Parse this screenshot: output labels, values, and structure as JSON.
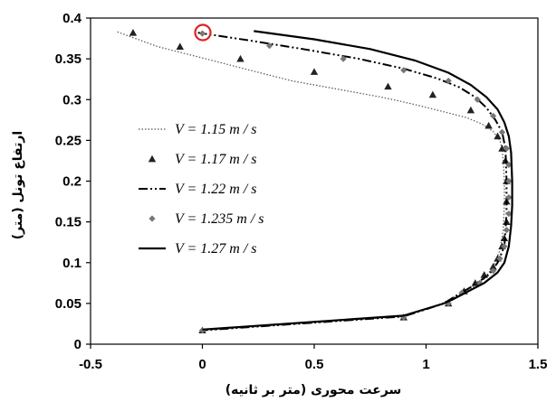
{
  "chart_data": {
    "type": "line",
    "xlabel": "سرعت محوری (متر بر ثانیه)",
    "ylabel": "ارتفاع تونل (متر)",
    "xlim": [
      -0.5,
      1.5
    ],
    "ylim": [
      0,
      0.4
    ],
    "xticks": [
      "-0.5",
      "0",
      "0.5",
      "1",
      "1.5"
    ],
    "yticks": [
      "0",
      "0.05",
      "0.1",
      "0.15",
      "0.2",
      "0.25",
      "0.3",
      "0.35",
      "0.4"
    ],
    "x_tick_values": [
      -0.5,
      0,
      0.5,
      1,
      1.5
    ],
    "y_tick_values": [
      0,
      0.05,
      0.1,
      0.15,
      0.2,
      0.25,
      0.3,
      0.35,
      0.4
    ],
    "grid": false,
    "legend_position": "left",
    "annotation": "red circle marking the point near (0, 0.38)",
    "series": [
      {
        "name": "V = 1.15 m / s",
        "style": "dotted",
        "color": "#555555",
        "points": [
          [
            -0.38,
            0.383
          ],
          [
            -0.2,
            0.365
          ],
          [
            0.0,
            0.351
          ],
          [
            0.2,
            0.337
          ],
          [
            0.4,
            0.323
          ],
          [
            0.6,
            0.313
          ],
          [
            0.8,
            0.303
          ],
          [
            0.95,
            0.294
          ],
          [
            1.08,
            0.285
          ],
          [
            1.18,
            0.278
          ],
          [
            1.25,
            0.27
          ],
          [
            1.3,
            0.261
          ],
          [
            1.33,
            0.25
          ],
          [
            1.34,
            0.24
          ],
          [
            1.345,
            0.225
          ],
          [
            1.35,
            0.2
          ],
          [
            1.35,
            0.17
          ],
          [
            1.345,
            0.14
          ],
          [
            1.33,
            0.115
          ],
          [
            1.3,
            0.095
          ],
          [
            1.26,
            0.08
          ],
          [
            1.2,
            0.068
          ],
          [
            1.12,
            0.057
          ],
          [
            1.07,
            0.05
          ],
          [
            0.9,
            0.034
          ],
          [
            0.0,
            0.017
          ]
        ]
      },
      {
        "name": "V = 1.17 m / s",
        "style": "markers-triangle",
        "color": "#222222",
        "points": [
          [
            -0.31,
            0.382
          ],
          [
            -0.1,
            0.365
          ],
          [
            0.17,
            0.35
          ],
          [
            0.5,
            0.334
          ],
          [
            0.83,
            0.316
          ],
          [
            1.03,
            0.306
          ],
          [
            1.2,
            0.287
          ],
          [
            1.28,
            0.268
          ],
          [
            1.32,
            0.255
          ],
          [
            1.34,
            0.24
          ],
          [
            1.355,
            0.225
          ],
          [
            1.36,
            0.2
          ],
          [
            1.36,
            0.175
          ],
          [
            1.36,
            0.15
          ],
          [
            1.35,
            0.13
          ],
          [
            1.34,
            0.12
          ],
          [
            1.32,
            0.105
          ],
          [
            1.3,
            0.095
          ],
          [
            1.26,
            0.085
          ],
          [
            1.22,
            0.075
          ],
          [
            1.17,
            0.065
          ],
          [
            1.1,
            0.05
          ],
          [
            0.9,
            0.033
          ],
          [
            0.0,
            0.017
          ]
        ]
      },
      {
        "name": "V = 1.22 m / s",
        "style": "dash-dot-dot",
        "color": "#000000",
        "points": [
          [
            -0.02,
            0.382
          ],
          [
            0.2,
            0.373
          ],
          [
            0.45,
            0.362
          ],
          [
            0.7,
            0.35
          ],
          [
            0.9,
            0.338
          ],
          [
            1.05,
            0.326
          ],
          [
            1.15,
            0.315
          ],
          [
            1.22,
            0.303
          ],
          [
            1.27,
            0.29
          ],
          [
            1.31,
            0.275
          ],
          [
            1.34,
            0.26
          ],
          [
            1.355,
            0.24
          ],
          [
            1.36,
            0.2
          ],
          [
            1.36,
            0.16
          ],
          [
            1.35,
            0.12
          ],
          [
            1.32,
            0.1
          ],
          [
            1.28,
            0.085
          ],
          [
            1.2,
            0.07
          ],
          [
            1.12,
            0.057
          ],
          [
            1.08,
            0.05
          ],
          [
            0.9,
            0.034
          ],
          [
            0.0,
            0.017
          ]
        ]
      },
      {
        "name": "V = 1.235 m / s",
        "style": "markers-diamond",
        "color": "#777777",
        "points": [
          [
            0.0,
            0.381
          ],
          [
            0.3,
            0.366
          ],
          [
            0.63,
            0.35
          ],
          [
            0.9,
            0.336
          ],
          [
            1.1,
            0.323
          ],
          [
            1.23,
            0.3
          ],
          [
            1.3,
            0.28
          ],
          [
            1.34,
            0.26
          ],
          [
            1.36,
            0.24
          ],
          [
            1.37,
            0.22
          ],
          [
            1.37,
            0.2
          ],
          [
            1.37,
            0.18
          ],
          [
            1.37,
            0.16
          ],
          [
            1.36,
            0.14
          ],
          [
            1.35,
            0.12
          ],
          [
            1.33,
            0.105
          ],
          [
            1.3,
            0.09
          ],
          [
            1.24,
            0.075
          ],
          [
            1.16,
            0.063
          ],
          [
            1.1,
            0.05
          ],
          [
            0.9,
            0.033
          ],
          [
            0.0,
            0.017
          ]
        ]
      },
      {
        "name": "V = 1.27 m / s",
        "style": "solid",
        "color": "#000000",
        "points": [
          [
            0.23,
            0.384
          ],
          [
            0.5,
            0.374
          ],
          [
            0.75,
            0.362
          ],
          [
            0.95,
            0.348
          ],
          [
            1.1,
            0.333
          ],
          [
            1.2,
            0.318
          ],
          [
            1.27,
            0.303
          ],
          [
            1.32,
            0.288
          ],
          [
            1.35,
            0.272
          ],
          [
            1.37,
            0.255
          ],
          [
            1.38,
            0.235
          ],
          [
            1.385,
            0.2
          ],
          [
            1.385,
            0.17
          ],
          [
            1.38,
            0.145
          ],
          [
            1.37,
            0.12
          ],
          [
            1.35,
            0.1
          ],
          [
            1.32,
            0.088
          ],
          [
            1.26,
            0.075
          ],
          [
            1.19,
            0.065
          ],
          [
            1.12,
            0.055
          ],
          [
            1.08,
            0.05
          ],
          [
            0.9,
            0.035
          ],
          [
            0.0,
            0.018
          ]
        ]
      }
    ]
  }
}
